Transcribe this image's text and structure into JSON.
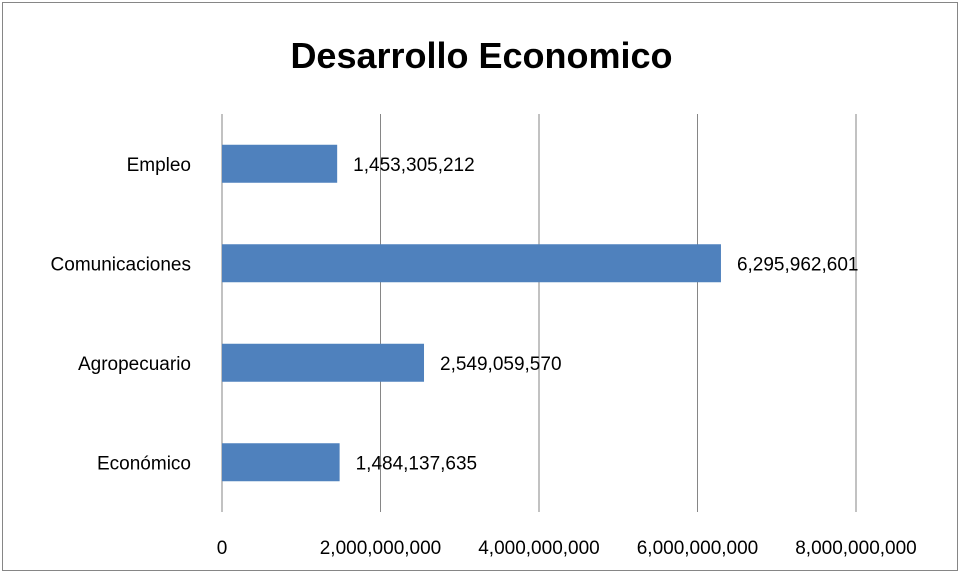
{
  "chart_data": {
    "type": "bar",
    "orientation": "horizontal",
    "title": "Desarrollo Economico",
    "categories": [
      "Económico",
      "Agropecuario",
      "Comunicaciones",
      "Empleo"
    ],
    "values": [
      1484137635,
      2549059570,
      6295962601,
      1453305212
    ],
    "data_labels": [
      "1,484,137,635",
      "2,549,059,570",
      "6,295,962,601",
      "1,453,305,212"
    ],
    "xlim": [
      0,
      8000000000
    ],
    "x_ticks": [
      0,
      2000000000,
      4000000000,
      6000000000,
      8000000000
    ],
    "x_tick_labels": [
      "0",
      "2,000,000,000",
      "4,000,000,000",
      "6,000,000,000",
      "8,000,000,000"
    ],
    "grid": "vertical",
    "legend": "none",
    "bar_color": "#4F81BD",
    "grid_color": "#868686"
  }
}
